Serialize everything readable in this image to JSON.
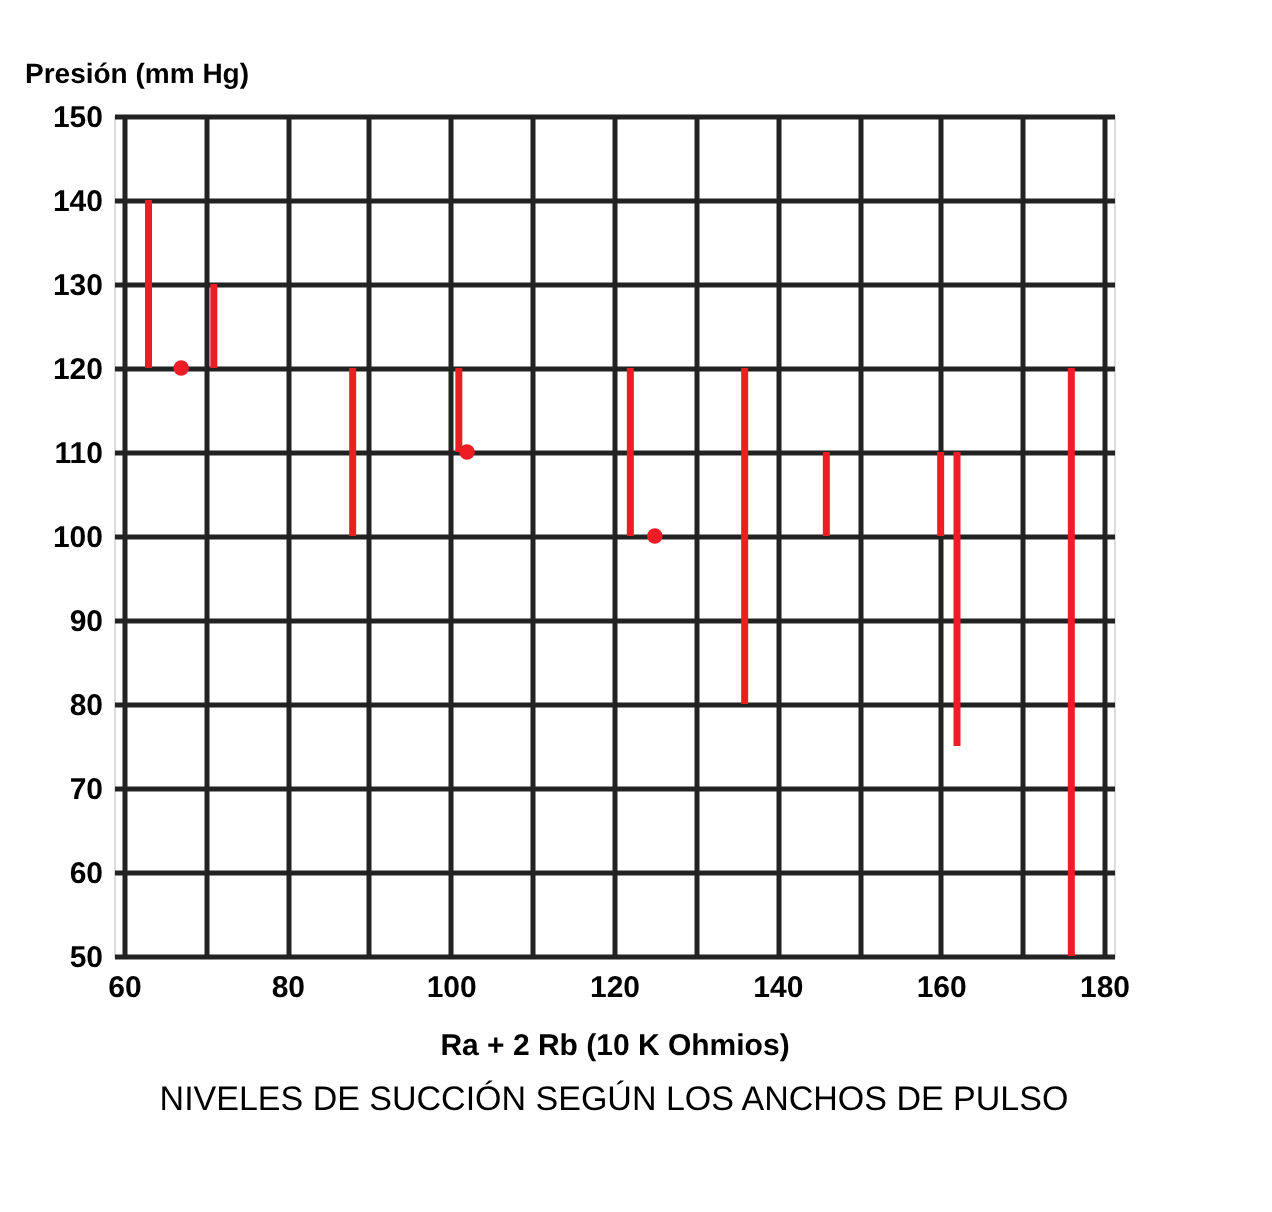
{
  "chart_data": {
    "type": "bar",
    "title": "NIVELES DE SUCCIÓN SEGÚN LOS ANCHOS DE PULSO",
    "xlabel": "Ra + 2 Rb  (10 K Ohmios)",
    "ylabel": "Presión (mm Hg)",
    "series": [
      {
        "type": "bar",
        "color": "#ee1c25",
        "x": [
          63,
          71,
          88,
          101,
          122,
          136,
          146,
          160,
          162,
          176
        ],
        "base": [
          120,
          120,
          100,
          110,
          100,
          80,
          100,
          100,
          75,
          50
        ],
        "values": [
          20,
          10,
          20,
          10,
          20,
          40,
          10,
          10,
          35,
          70
        ]
      },
      {
        "type": "scatter",
        "color": "#ee1c25",
        "x": [
          67,
          102,
          125
        ],
        "values": [
          120,
          110,
          100
        ]
      }
    ],
    "xlim": [
      60,
      180
    ],
    "ylim": [
      50,
      150
    ],
    "xticks": [
      60,
      {
        "value": 70,
        "label": null
      },
      80,
      {
        "value": 90,
        "label": null
      },
      100,
      {
        "value": 110,
        "label": null
      },
      120,
      {
        "value": 130,
        "label": null
      },
      140,
      {
        "value": 150,
        "label": null
      },
      160,
      {
        "value": 170,
        "label": null
      },
      180
    ],
    "yticks": [
      50,
      60,
      70,
      80,
      90,
      100,
      110,
      120,
      130,
      140,
      150
    ],
    "grid": true,
    "marker": "circle"
  }
}
